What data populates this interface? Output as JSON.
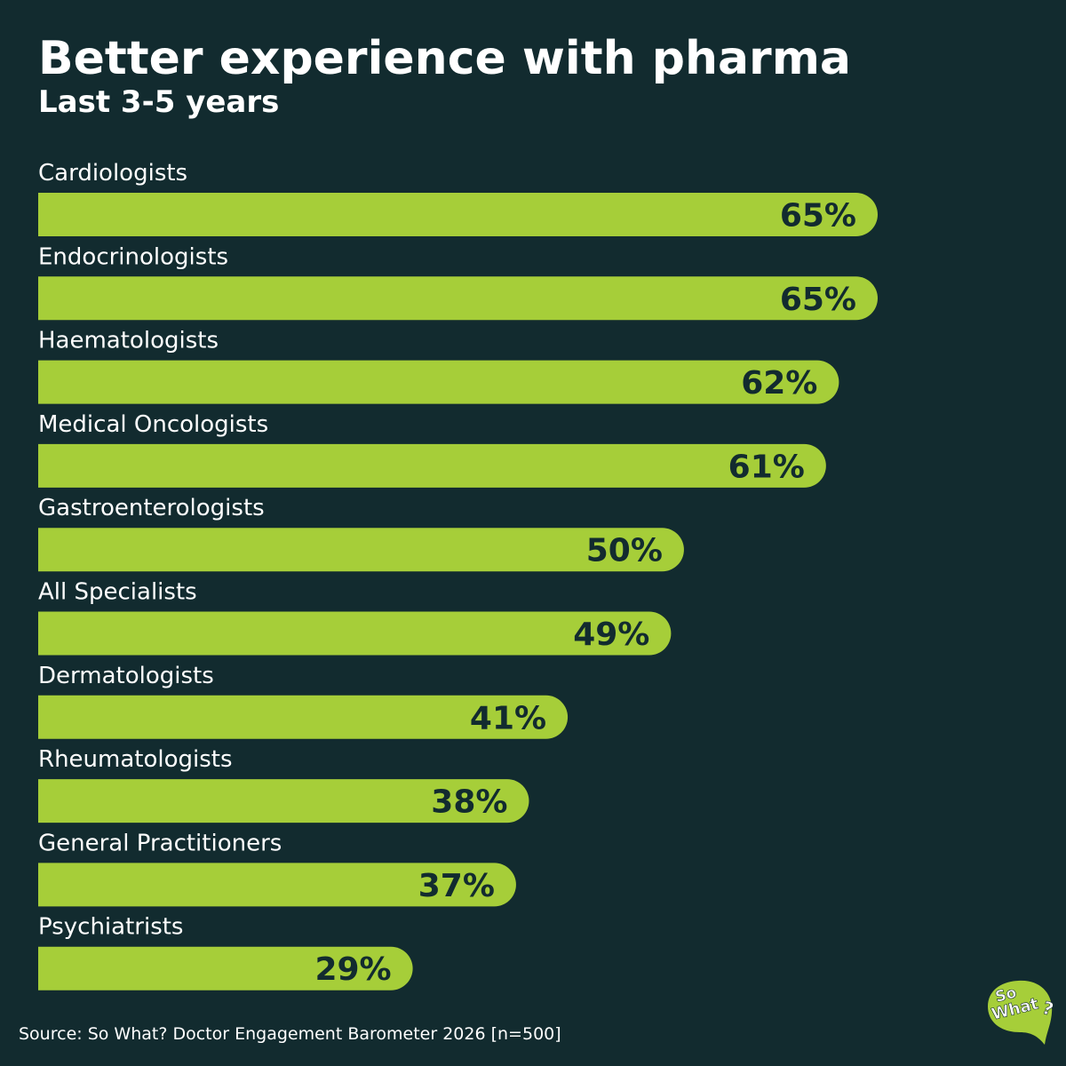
{
  "colors": {
    "background": "#122b2f",
    "bar": "#a6ce39",
    "bar_text": "#122b2f",
    "text": "#ffffff"
  },
  "chart_data": {
    "type": "bar",
    "orientation": "horizontal",
    "title": "Better experience with pharma",
    "subtitle": "Last 3-5 years",
    "categories": [
      "Cardiologists",
      "Endocrinologists",
      "Haematologists",
      "Medical Oncologists",
      "Gastroenterologists",
      "All Specialists",
      "Dermatologists",
      "Rheumatologists",
      "General Practitioners",
      "Psychiatrists"
    ],
    "values": [
      65,
      65,
      62,
      61,
      50,
      49,
      41,
      38,
      37,
      29
    ],
    "value_labels": [
      "65%",
      "65%",
      "62%",
      "61%",
      "50%",
      "49%",
      "41%",
      "38%",
      "37%",
      "29%"
    ],
    "unit": "%",
    "xlim": [
      0,
      100
    ],
    "xlabel": "",
    "ylabel": "",
    "grid": false,
    "legend": "none"
  },
  "footer": {
    "source": "Source: So What? Doctor Engagement Barometer 2026 [n=500]"
  },
  "logo": {
    "line1": "So",
    "line2": "What",
    "mark": "?",
    "icon": "speech-bubble-icon"
  }
}
